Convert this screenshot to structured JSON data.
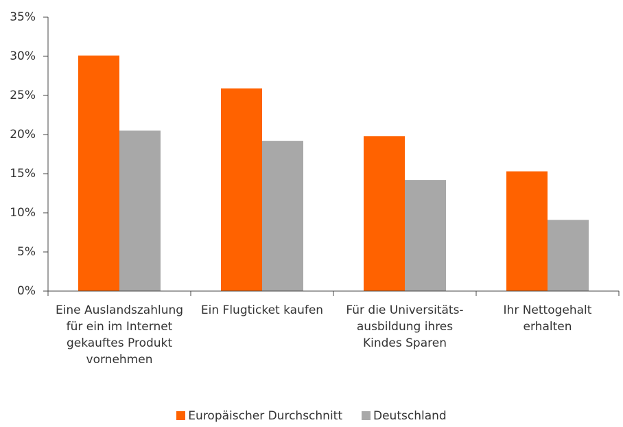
{
  "chart_data": {
    "type": "bar",
    "categories": [
      "Eine Auslandszahlung für ein im Internet gekauftes Produkt vornehmen",
      "Ein Flugticket kaufen",
      "Für die Universitäts-ausbildung ihres Kindes Sparen",
      "Ihr Nettogehalt erhalten"
    ],
    "series": [
      {
        "name": "Europäischer Durchschnitt",
        "color": "#ff6200",
        "values": [
          30.1,
          25.9,
          19.8,
          15.3
        ]
      },
      {
        "name": "Deutschland",
        "color": "#a8a8a8",
        "values": [
          20.5,
          19.2,
          14.2,
          9.1
        ]
      }
    ],
    "ylim": [
      0,
      35
    ],
    "yticks": [
      {
        "value": 0,
        "label": "0%"
      },
      {
        "value": 5,
        "label": "5%"
      },
      {
        "value": 10,
        "label": "10%"
      },
      {
        "value": 15,
        "label": "15%"
      },
      {
        "value": 20,
        "label": "20%"
      },
      {
        "value": 25,
        "label": "25%"
      },
      {
        "value": 30,
        "label": "30%"
      },
      {
        "value": 35,
        "label": "35%"
      }
    ],
    "legend": "bottom"
  }
}
